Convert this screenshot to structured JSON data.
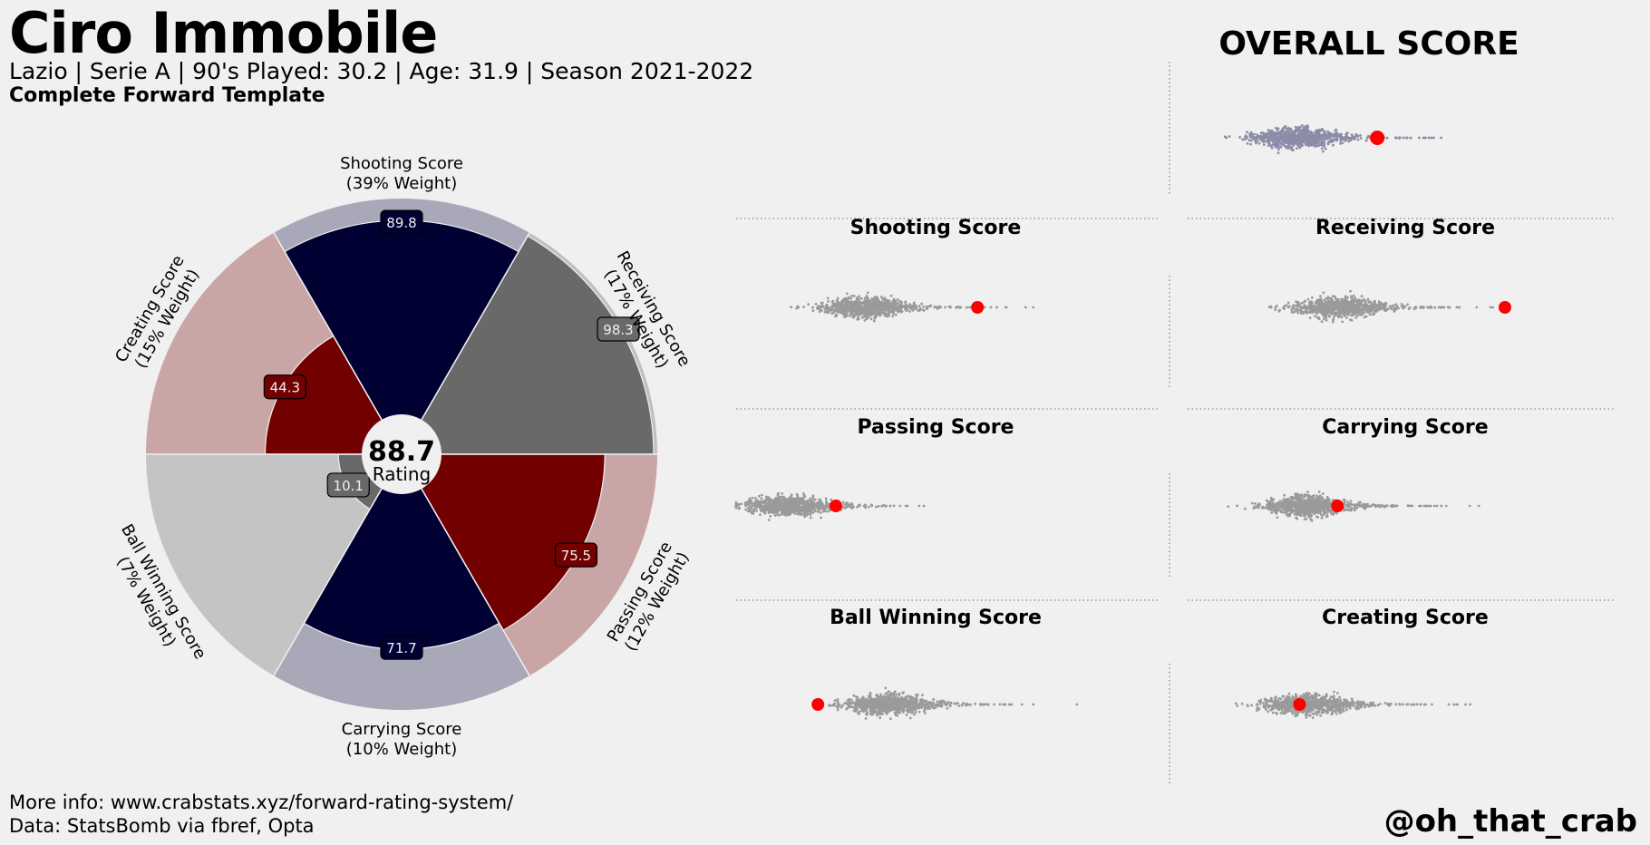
{
  "header": {
    "title": "Ciro Immobile",
    "subtitle": "Lazio  | Serie A | 90's Played: 30.2 | Age: 31.9 | Season 2021-2022",
    "template": "Complete Forward Template"
  },
  "footer": {
    "info_line": "More info: www.crabstats.xyz/forward-rating-system/",
    "data_line": "Data: StatsBomb via fbref, Opta",
    "handle": "@oh_that_crab"
  },
  "center": {
    "rating_value": "88.7",
    "rating_label": "Rating"
  },
  "overall_title": "OVERALL SCORE",
  "colors": {
    "background": "#f0f0f0",
    "navy": "#000033",
    "grey": "#696969",
    "red": "#720000",
    "light_grey": "#c4c4c4",
    "bg_navy": "#a8a8b8",
    "bg_grey": "#c0c0c0",
    "bg_red": "#c9a5a5",
    "bg_light": "#c4c4c4",
    "dot": "#9a9a9a",
    "dot_overall": "#8c8ca8",
    "highlight": "#ff0000"
  },
  "chart_data": [
    {
      "type": "polar-bar",
      "max": 100,
      "segments": [
        {
          "name": "Shooting Score",
          "weight_label": "(39% Weight)",
          "value": 89.8,
          "color": "#000033",
          "bg": "#a8a8b8",
          "label_text": "89.8"
        },
        {
          "name": "Receiving Score",
          "weight_label": "(17% Weight)",
          "value": 98.3,
          "color": "#696969",
          "bg": "#c0c0c0",
          "label_text": "98.3"
        },
        {
          "name": "Passing Score",
          "weight_label": "(12% Weight)",
          "value": 75.5,
          "color": "#720000",
          "bg": "#c9a5a5",
          "label_text": "75.5"
        },
        {
          "name": "Carrying Score",
          "weight_label": "(10% Weight)",
          "value": 71.7,
          "color": "#000033",
          "bg": "#a8a8b8",
          "label_text": "71.7"
        },
        {
          "name": "Ball Winning Score",
          "weight_label": "(7% Weight)",
          "value": 10.1,
          "color": "#696969",
          "bg": "#c4c4c4",
          "label_text": "10.1"
        },
        {
          "name": "Creating Score",
          "weight_label": "(15% Weight)",
          "value": 44.3,
          "color": "#720000",
          "bg": "#c9a5a5",
          "label_text": "44.3"
        }
      ]
    },
    {
      "type": "swarm",
      "panels": [
        {
          "title": "OVERALL SCORE",
          "player_position": 0.43,
          "spread": 0.45,
          "peak": 0.23
        },
        {
          "title": "Shooting Score",
          "player_position": 0.605,
          "spread": 0.5,
          "peak": 0.32
        },
        {
          "title": "Receiving Score",
          "player_position": 0.75,
          "spread": 0.5,
          "peak": 0.33
        },
        {
          "title": "Passing Score",
          "player_position": 0.25,
          "spread": 0.42,
          "peak": 0.13
        },
        {
          "title": "Carrying Score",
          "player_position": 0.33,
          "spread": 0.45,
          "peak": 0.25
        },
        {
          "title": "Ball Winning Score",
          "player_position": 0.205,
          "spread": 0.55,
          "peak": 0.38
        },
        {
          "title": "Creating Score",
          "player_position": 0.235,
          "spread": 0.48,
          "peak": 0.25
        }
      ]
    }
  ]
}
